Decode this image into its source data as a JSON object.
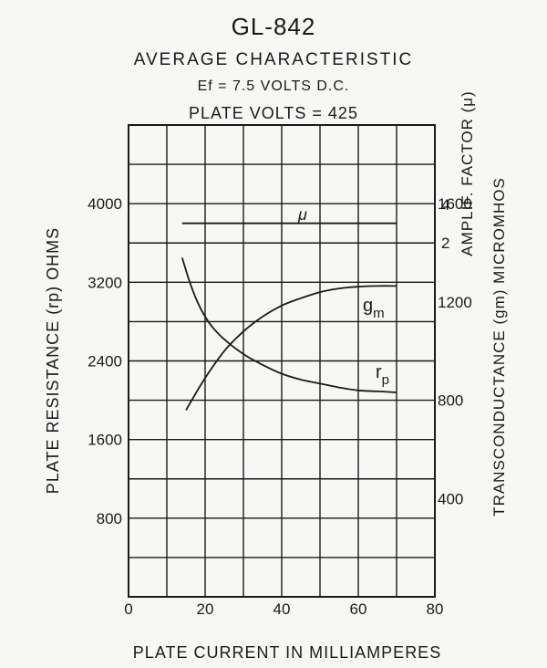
{
  "chart_data": {
    "type": "line",
    "title": "GL-842",
    "subtitle": "AVERAGE CHARACTERISTIC",
    "conditions": [
      "Ef = 7.5 VOLTS D.C.",
      "PLATE VOLTS = 425"
    ],
    "xlabel": "PLATE CURRENT IN MILLIAMPERES",
    "xlim": [
      0,
      80
    ],
    "xticks": [
      "0",
      "20",
      "40",
      "60",
      "80"
    ],
    "grid": true,
    "y_left": {
      "label": "PLATE RESISTANCE (rp) OHMS",
      "lim": [
        0,
        4800
      ],
      "ticks": [
        "4000",
        "3200",
        "2400",
        "1600",
        "800"
      ]
    },
    "y_right_upper": {
      "label": "AMPLIF. FACTOR (μ)",
      "ticks": [
        "4",
        "2"
      ]
    },
    "y_right_lower": {
      "label": "TRANSCONDUCTANCE (gm) MICROMHOS",
      "lim": [
        0,
        1920
      ],
      "ticks": [
        "1600",
        "1200",
        "800",
        "400"
      ]
    },
    "series": [
      {
        "name": "μ",
        "axis": "right_upper",
        "x": [
          14,
          70
        ],
        "y": [
          3.0,
          3.0
        ],
        "plot_as_left_value": [
          3800,
          3800
        ]
      },
      {
        "name": "gm",
        "axis": "right_lower",
        "x": [
          15,
          20,
          25,
          30,
          35,
          40,
          45,
          50,
          55,
          60,
          65,
          70
        ],
        "y": [
          760,
          890,
          1000,
          1080,
          1140,
          1185,
          1215,
          1240,
          1255,
          1262,
          1265,
          1265
        ]
      },
      {
        "name": "rp",
        "axis": "left",
        "x": [
          14,
          16,
          18,
          20,
          22,
          25,
          30,
          35,
          40,
          45,
          50,
          55,
          60,
          65,
          70
        ],
        "y": [
          3450,
          3200,
          3000,
          2850,
          2740,
          2620,
          2470,
          2360,
          2270,
          2210,
          2170,
          2130,
          2100,
          2090,
          2080
        ]
      }
    ],
    "annotations": {
      "mu_label": "μ",
      "gm_label": "g",
      "gm_sub": "m",
      "rp_label": "r",
      "rp_sub": "p"
    }
  }
}
